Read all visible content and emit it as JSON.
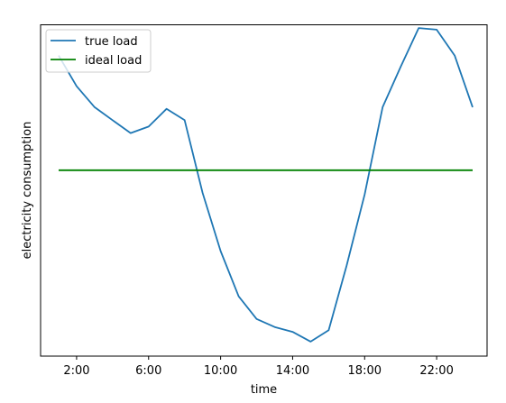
{
  "chart_data": {
    "type": "line",
    "title": "",
    "xlabel": "time",
    "ylabel": "electricity consumption",
    "x_ticks": [
      "2:00",
      "6:00",
      "10:00",
      "14:00",
      "18:00",
      "22:00"
    ],
    "x_tick_hours": [
      2,
      6,
      10,
      14,
      18,
      22
    ],
    "xlim": [
      0.0,
      24.8
    ],
    "y_ticks_shown": false,
    "grid": false,
    "legend": "top-left",
    "series": [
      {
        "name": "true load",
        "color": "#1f77b4",
        "x": [
          1,
          2,
          3,
          4,
          5,
          6,
          7,
          8,
          9,
          10,
          11,
          12,
          13,
          14,
          15,
          16,
          17,
          18,
          19,
          20,
          21,
          22,
          23,
          24
        ],
        "y": [
          1.02,
          0.83,
          0.7,
          0.62,
          0.54,
          0.58,
          0.69,
          0.62,
          0.17,
          -0.19,
          -0.47,
          -0.61,
          -0.66,
          -0.69,
          -0.75,
          -0.68,
          -0.28,
          0.16,
          0.7,
          0.95,
          1.19,
          1.18,
          1.02,
          0.7
        ],
        "ylabel_hidden": true
      },
      {
        "name": "ideal load",
        "color": "#008000",
        "x": [
          1,
          24
        ],
        "y": [
          0.31,
          0.31
        ]
      }
    ],
    "ylim": [
      -0.84,
      1.21
    ]
  }
}
